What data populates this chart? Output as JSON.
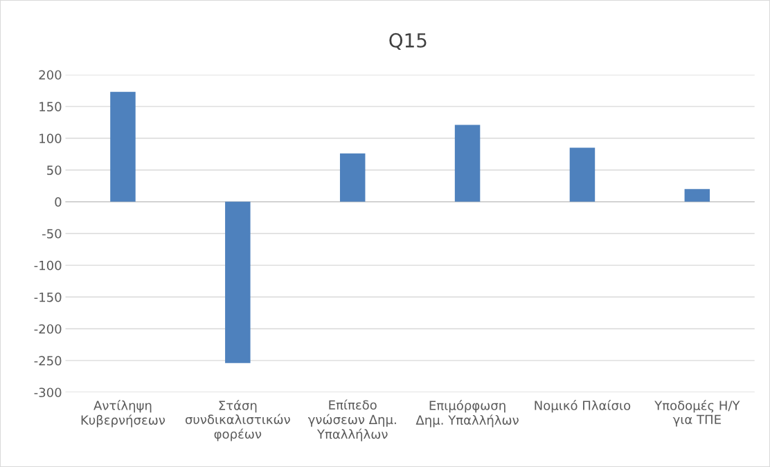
{
  "chart_data": {
    "type": "bar",
    "title": "Q15",
    "categories": [
      "Αντίληψη\nΚυβερνήσεων",
      "Στάση\nσυνδικαλιστικών\nφορέων",
      "Επίπεδο\nγνώσεων Δημ.\nΥπαλλήλων",
      "Επιμόρφωση\nΔημ. Υπαλλήλων",
      "Νομικό Πλαίσιο",
      "Υποδομές Η/Υ\nγια ΤΠΕ"
    ],
    "values": [
      173,
      -254,
      76,
      121,
      85,
      20
    ],
    "color": "#4e81bd",
    "ylim": [
      -300,
      200
    ],
    "yticks": [
      -300,
      -250,
      -200,
      -150,
      -100,
      -50,
      0,
      50,
      100,
      150,
      200
    ],
    "grid": "y",
    "legend": false
  }
}
